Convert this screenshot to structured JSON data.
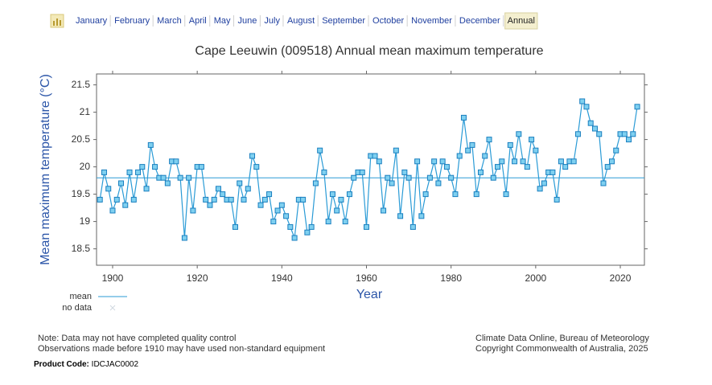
{
  "nav": {
    "items": [
      "January",
      "February",
      "March",
      "April",
      "May",
      "June",
      "July",
      "August",
      "September",
      "October",
      "November",
      "December",
      "Annual"
    ],
    "active": 12
  },
  "chart_data": {
    "type": "line",
    "title": "Cape Leeuwin (009518) Annual mean maximum temperature",
    "x_label": "Year",
    "y_label": "Mean maximum temperature (°C)",
    "x": [
      1897,
      1898,
      1899,
      1900,
      1901,
      1902,
      1903,
      1904,
      1905,
      1906,
      1907,
      1908,
      1909,
      1910,
      1911,
      1912,
      1913,
      1914,
      1915,
      1916,
      1917,
      1918,
      1919,
      1920,
      1921,
      1922,
      1923,
      1924,
      1925,
      1926,
      1927,
      1928,
      1929,
      1930,
      1931,
      1932,
      1933,
      1934,
      1935,
      1936,
      1937,
      1938,
      1939,
      1940,
      1941,
      1942,
      1943,
      1944,
      1945,
      1946,
      1947,
      1948,
      1949,
      1950,
      1951,
      1952,
      1953,
      1954,
      1955,
      1956,
      1957,
      1958,
      1959,
      1960,
      1961,
      1962,
      1963,
      1964,
      1965,
      1966,
      1967,
      1968,
      1969,
      1970,
      1971,
      1972,
      1973,
      1974,
      1975,
      1976,
      1977,
      1978,
      1979,
      1980,
      1981,
      1982,
      1983,
      1984,
      1985,
      1986,
      1987,
      1988,
      1989,
      1990,
      1991,
      1992,
      1993,
      1994,
      1995,
      1996,
      1997,
      1998,
      1999,
      2000,
      2001,
      2002,
      2003,
      2004,
      2005,
      2006,
      2007,
      2008,
      2009,
      2010,
      2011,
      2012,
      2013,
      2014,
      2015,
      2016,
      2017,
      2018,
      2019,
      2020,
      2021,
      2022,
      2023,
      2024
    ],
    "values": [
      19.4,
      19.9,
      19.6,
      19.2,
      19.4,
      19.7,
      19.3,
      19.9,
      19.4,
      19.9,
      20.0,
      19.6,
      20.4,
      20.0,
      19.8,
      19.8,
      19.7,
      20.1,
      20.1,
      19.8,
      18.7,
      19.8,
      19.2,
      20.0,
      20.0,
      19.4,
      19.3,
      19.4,
      19.6,
      19.5,
      19.4,
      19.4,
      18.9,
      19.7,
      19.4,
      19.6,
      20.2,
      20.0,
      19.3,
      19.4,
      19.5,
      19.0,
      19.2,
      19.3,
      19.1,
      18.9,
      18.7,
      19.4,
      19.4,
      18.8,
      18.9,
      19.7,
      20.3,
      19.9,
      19.0,
      19.5,
      19.2,
      19.4,
      19.0,
      19.5,
      19.8,
      19.9,
      19.9,
      18.9,
      20.2,
      20.2,
      20.1,
      19.2,
      19.8,
      19.7,
      20.3,
      19.1,
      19.9,
      19.8,
      18.9,
      20.1,
      19.1,
      19.5,
      19.8,
      20.1,
      19.7,
      20.1,
      20.0,
      19.8,
      19.5,
      20.2,
      20.9,
      20.3,
      20.4,
      19.5,
      19.9,
      20.2,
      20.5,
      19.8,
      20.0,
      20.1,
      19.5,
      20.4,
      20.1,
      20.6,
      20.1,
      20.0,
      20.5,
      20.3,
      19.6,
      19.7,
      19.9,
      19.9,
      19.4,
      20.1,
      20.0,
      20.1,
      20.1,
      20.6,
      21.2,
      21.1,
      20.8,
      20.7,
      20.6,
      19.7,
      20.0,
      20.1,
      20.3,
      20.6,
      20.6,
      20.5,
      20.6,
      21.1
    ],
    "color": "#2a9bd6",
    "mean": 19.8,
    "legend": [
      {
        "label": "mean",
        "color": "#2a9bd6"
      },
      {
        "label": "no data",
        "color": "#d0d8e0"
      }
    ],
    "xlim": [
      1896.2,
      2025.7
    ],
    "ylim": [
      18.2,
      21.7
    ],
    "xticks": [
      1900,
      1920,
      1940,
      1960,
      1980,
      2000,
      2020
    ],
    "yticks": [
      18.5,
      19,
      19.5,
      20,
      20.5,
      21,
      21.5
    ]
  },
  "footer": {
    "left": [
      "Note: Data may not have completed quality control",
      "Observations made before 1910 may have used non-standard equipment"
    ],
    "right": [
      "Climate Data Online, Bureau of Meteorology",
      "Copyright Commonwealth of Australia, 2025"
    ],
    "product_code_label": "Product Code:",
    "product_code": "IDCJAC0002"
  }
}
